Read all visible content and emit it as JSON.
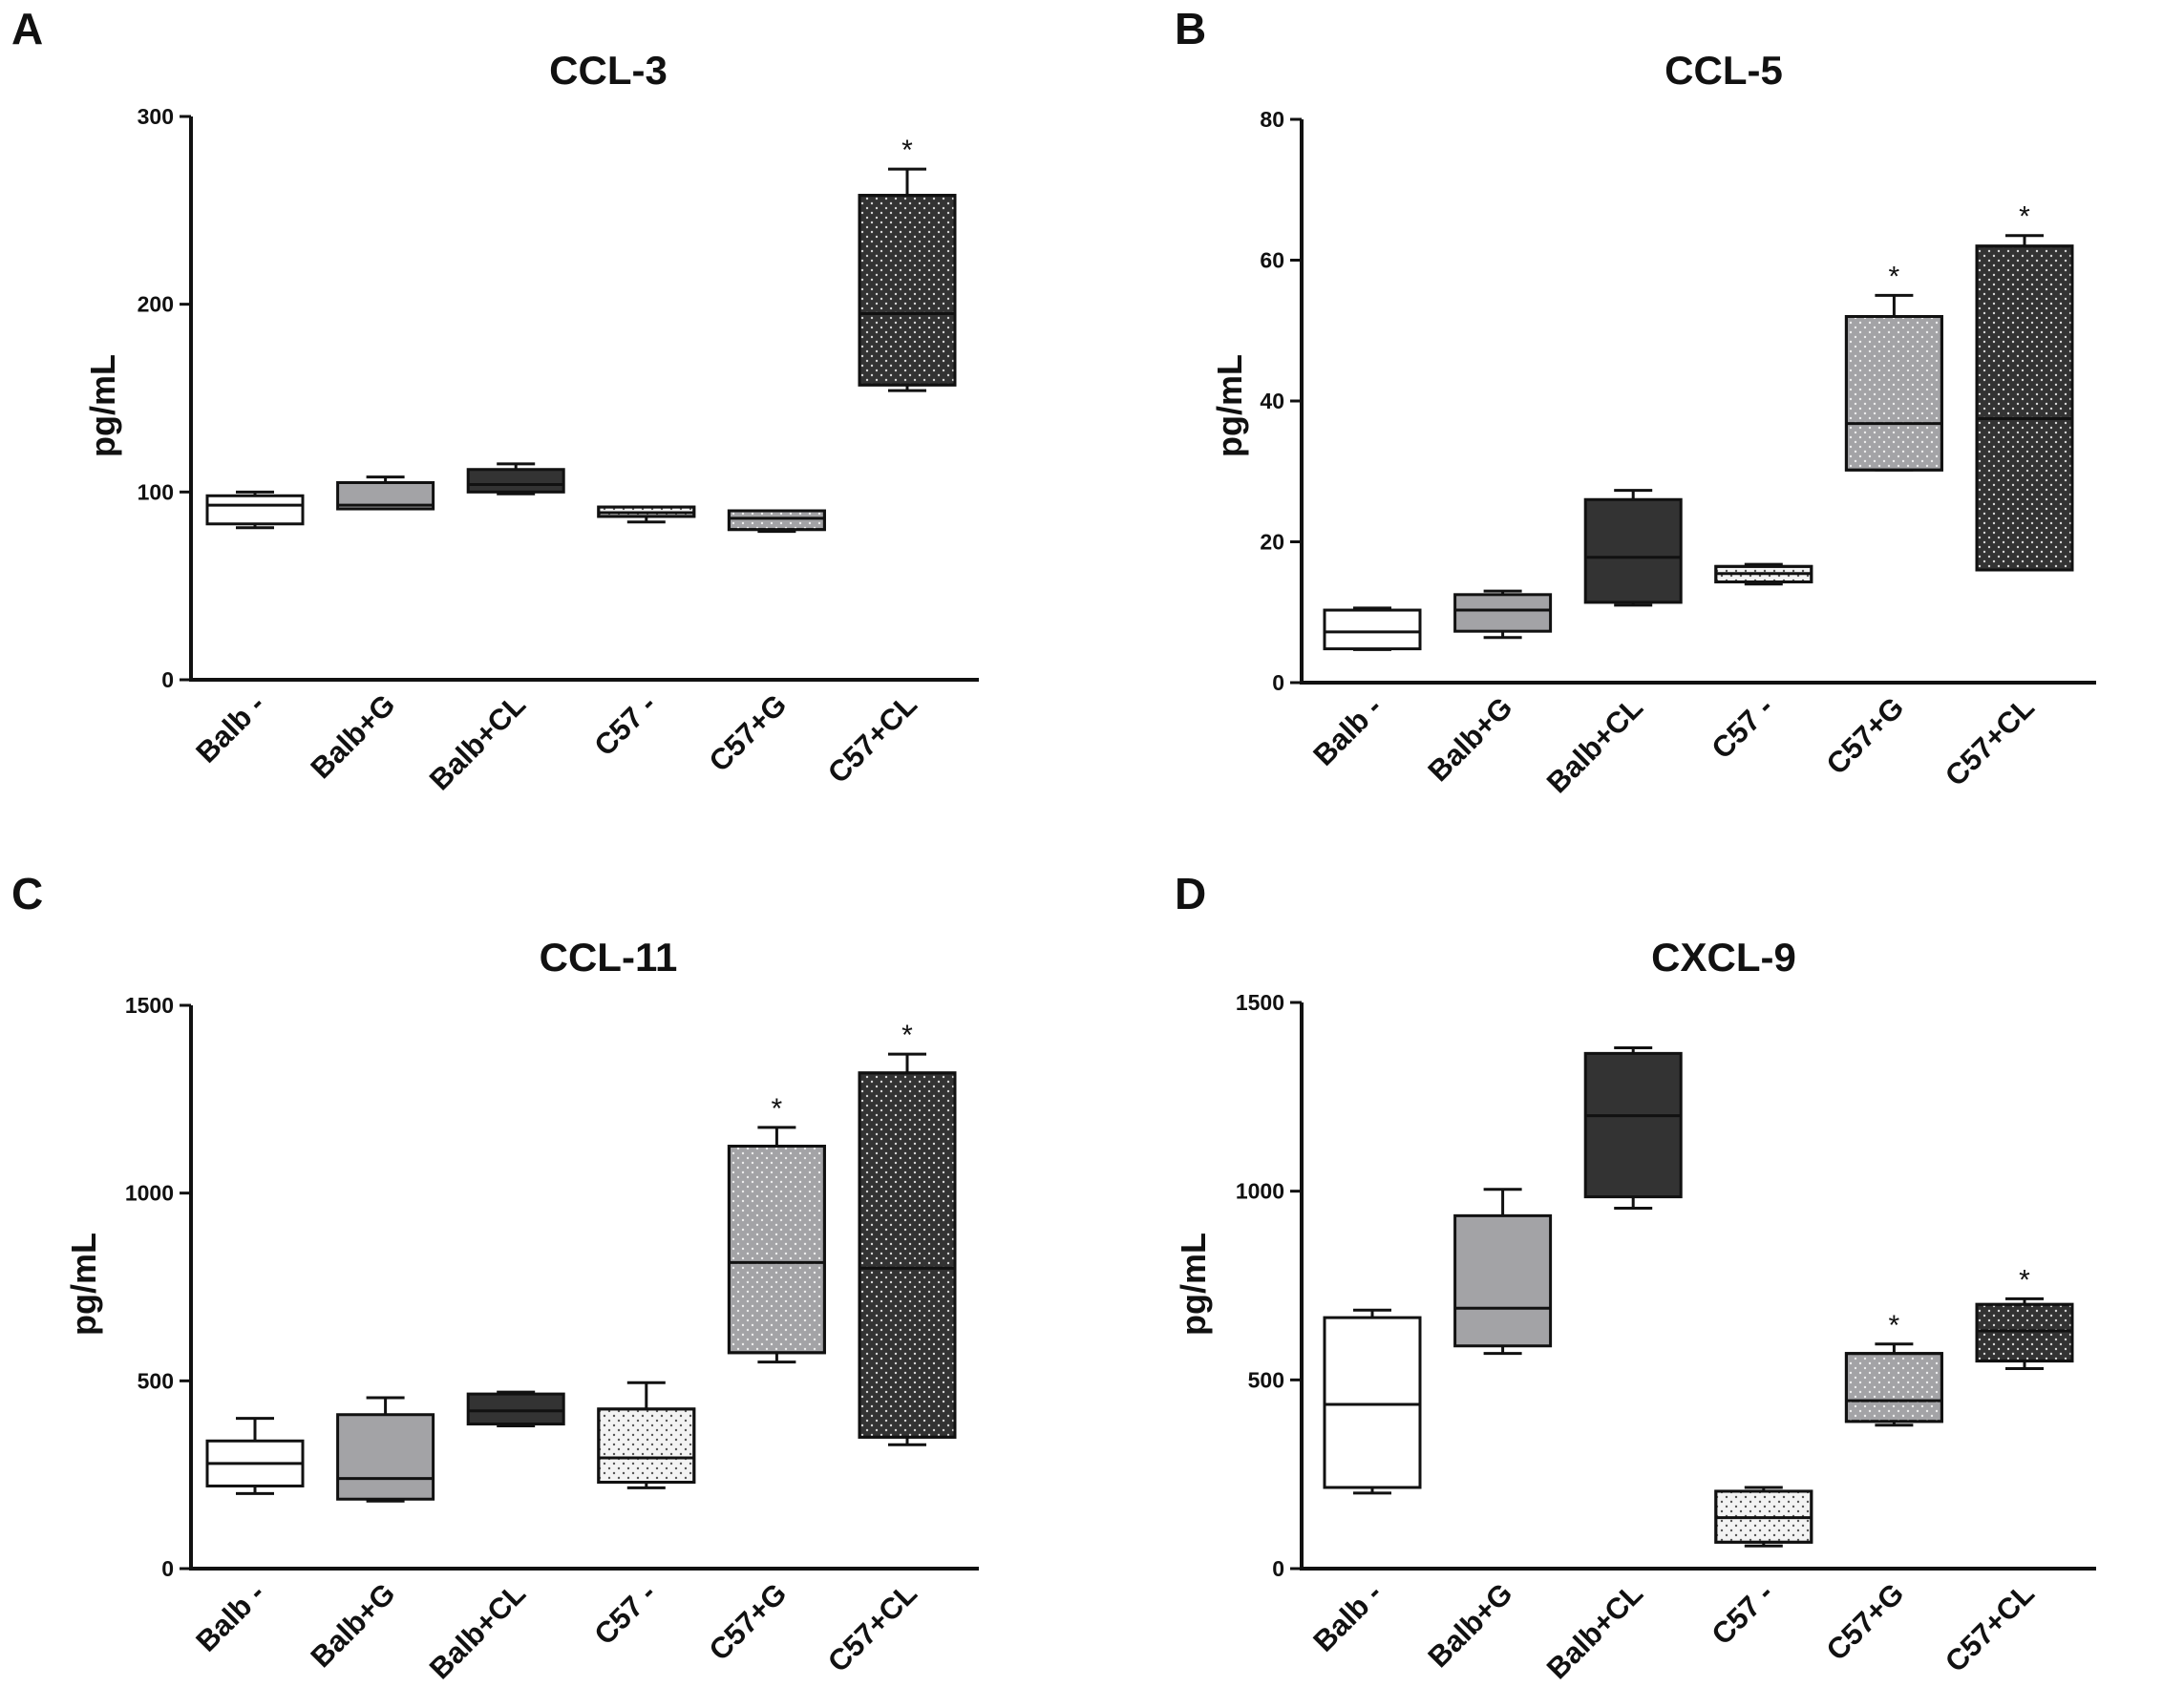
{
  "colors": {
    "white": "#ffffff",
    "gray": "#a3a3a6",
    "dark": "#333333",
    "dotted": "#f3f3f3",
    "axis": "#111111"
  },
  "chart_data": [
    {
      "panel": "A",
      "type": "box",
      "title": "CCL-3",
      "ylabel": "pg/mL",
      "ylim": [
        0,
        300
      ],
      "yticks": [
        0,
        100,
        200,
        300
      ],
      "categories": [
        "Balb -",
        "Balb+G",
        "Balb+CL",
        "C57 -",
        "C57+G",
        "C57+CL"
      ],
      "boxes": [
        {
          "min": 81,
          "q1": 83,
          "median": 93,
          "q3": 98,
          "max": 100,
          "fill": "white",
          "pattern": "none"
        },
        {
          "min": 91,
          "q1": 91,
          "median": 93,
          "q3": 105,
          "max": 108,
          "fill": "gray",
          "pattern": "none"
        },
        {
          "min": 99,
          "q1": 100,
          "median": 104,
          "q3": 112,
          "max": 115,
          "fill": "dark",
          "pattern": "none"
        },
        {
          "min": 84,
          "q1": 87,
          "median": 89,
          "q3": 92,
          "max": 92,
          "fill": "dotted",
          "pattern": "dots-dark"
        },
        {
          "min": 79,
          "q1": 80,
          "median": 86,
          "q3": 90,
          "max": 90,
          "fill": "gray",
          "pattern": "dots-light"
        },
        {
          "min": 154,
          "q1": 157,
          "median": 195,
          "q3": 258,
          "max": 272,
          "fill": "dark",
          "pattern": "dots-light"
        }
      ],
      "significance": [
        "",
        "",
        "",
        "",
        "",
        "*"
      ]
    },
    {
      "panel": "B",
      "type": "box",
      "title": "CCL-5",
      "ylabel": "pg/mL",
      "ylim": [
        0,
        80
      ],
      "yticks": [
        0,
        20,
        40,
        60,
        80
      ],
      "categories": [
        "Balb -",
        "Balb+G",
        "Balb+CL",
        "C57 -",
        "C57+G",
        "C57+CL"
      ],
      "boxes": [
        {
          "min": 4.7,
          "q1": 4.8,
          "median": 7.2,
          "q3": 10.3,
          "max": 10.6,
          "fill": "white",
          "pattern": "none"
        },
        {
          "min": 6.4,
          "q1": 7.3,
          "median": 10.3,
          "q3": 12.5,
          "max": 13.0,
          "fill": "gray",
          "pattern": "none"
        },
        {
          "min": 11.0,
          "q1": 11.4,
          "median": 17.8,
          "q3": 26.0,
          "max": 27.3,
          "fill": "dark",
          "pattern": "none"
        },
        {
          "min": 14.0,
          "q1": 14.3,
          "median": 15.5,
          "q3": 16.5,
          "max": 16.8,
          "fill": "dotted",
          "pattern": "dots-dark"
        },
        {
          "min": 30.2,
          "q1": 30.2,
          "median": 36.8,
          "q3": 52.0,
          "max": 55.0,
          "fill": "gray",
          "pattern": "dots-light"
        },
        {
          "min": 16.0,
          "q1": 16.0,
          "median": 37.5,
          "q3": 62.0,
          "max": 63.5,
          "fill": "dark",
          "pattern": "dots-light"
        }
      ],
      "significance": [
        "",
        "",
        "",
        "",
        "*",
        "*"
      ]
    },
    {
      "panel": "C",
      "type": "box",
      "title": "CCL-11",
      "ylabel": "pg/mL",
      "ylim": [
        0,
        1500
      ],
      "yticks": [
        0,
        500,
        1000,
        1500
      ],
      "categories": [
        "Balb -",
        "Balb+G",
        "Balb+CL",
        "C57 -",
        "C57+G",
        "C57+CL"
      ],
      "boxes": [
        {
          "min": 200,
          "q1": 220,
          "median": 280,
          "q3": 340,
          "max": 400,
          "fill": "white",
          "pattern": "none"
        },
        {
          "min": 180,
          "q1": 185,
          "median": 240,
          "q3": 410,
          "max": 455,
          "fill": "gray",
          "pattern": "none"
        },
        {
          "min": 380,
          "q1": 385,
          "median": 420,
          "q3": 465,
          "max": 470,
          "fill": "dark",
          "pattern": "none"
        },
        {
          "min": 215,
          "q1": 230,
          "median": 295,
          "q3": 425,
          "max": 495,
          "fill": "dotted",
          "pattern": "dots-dark"
        },
        {
          "min": 550,
          "q1": 575,
          "median": 815,
          "q3": 1125,
          "max": 1175,
          "fill": "gray",
          "pattern": "dots-light"
        },
        {
          "min": 330,
          "q1": 350,
          "median": 800,
          "q3": 1320,
          "max": 1370,
          "fill": "dark",
          "pattern": "dots-light"
        }
      ],
      "significance": [
        "",
        "",
        "",
        "",
        "*",
        "*"
      ]
    },
    {
      "panel": "D",
      "type": "box",
      "title": "CXCL-9",
      "ylabel": "pg/mL",
      "ylim": [
        0,
        1500
      ],
      "yticks": [
        0,
        500,
        1000,
        1500
      ],
      "categories": [
        "Balb -",
        "Balb+G",
        "Balb+CL",
        "C57 -",
        "C57+G",
        "C57+CL"
      ],
      "boxes": [
        {
          "min": 200,
          "q1": 215,
          "median": 435,
          "q3": 665,
          "max": 685,
          "fill": "white",
          "pattern": "none"
        },
        {
          "min": 570,
          "q1": 590,
          "median": 690,
          "q3": 935,
          "max": 1005,
          "fill": "gray",
          "pattern": "none"
        },
        {
          "min": 955,
          "q1": 985,
          "median": 1200,
          "q3": 1365,
          "max": 1380,
          "fill": "dark",
          "pattern": "none"
        },
        {
          "min": 60,
          "q1": 70,
          "median": 135,
          "q3": 205,
          "max": 215,
          "fill": "dotted",
          "pattern": "dots-dark"
        },
        {
          "min": 380,
          "q1": 390,
          "median": 445,
          "q3": 570,
          "max": 595,
          "fill": "gray",
          "pattern": "dots-light"
        },
        {
          "min": 530,
          "q1": 550,
          "median": 630,
          "q3": 700,
          "max": 715,
          "fill": "dark",
          "pattern": "dots-light"
        }
      ],
      "significance": [
        "",
        "",
        "",
        "",
        "*",
        "*"
      ]
    }
  ]
}
